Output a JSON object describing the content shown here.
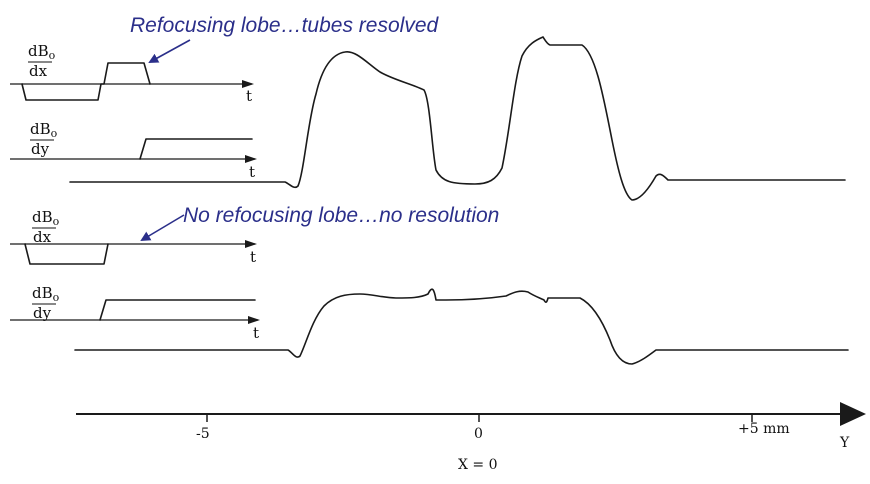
{
  "annotations": {
    "top": "Refocusing lobe…tubes resolved",
    "bottom": "No refocusing lobe…no resolution"
  },
  "gradient_labels": {
    "numerator": "dB",
    "subscript": "o",
    "dx": "dx",
    "dy": "dy",
    "time": "t"
  },
  "position_axis": {
    "ticks": [
      "-5",
      "0",
      "+5 mm"
    ],
    "axis_label": "Y",
    "caption": "X = 0"
  },
  "colors": {
    "annotation": "#2b2f8a",
    "trace": "#1a1a1a"
  }
}
